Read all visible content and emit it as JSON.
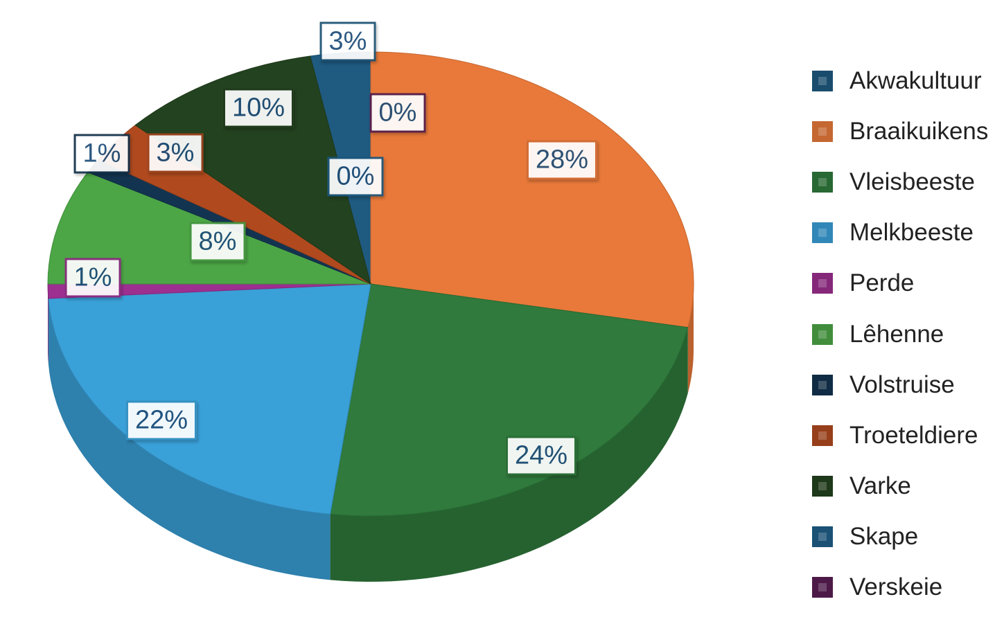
{
  "chart_data": {
    "type": "pie",
    "style": "3d",
    "title": "",
    "legend_position": "right",
    "slices": [
      {
        "label": "Akwakultuur",
        "value": 3,
        "data_label": "3%",
        "color": "#1f5a80"
      },
      {
        "label": "Braaikuikens",
        "value": 28,
        "data_label": "28%",
        "color": "#e8793a"
      },
      {
        "label": "Vleisbeeste",
        "value": 24,
        "data_label": "24%",
        "color": "#2f7a3c"
      },
      {
        "label": "Melkbeeste",
        "value": 22,
        "data_label": "22%",
        "color": "#3aa0d8"
      },
      {
        "label": "Perde",
        "value": 1,
        "data_label": "1%",
        "color": "#9c2f90"
      },
      {
        "label": "Lêhenne",
        "value": 8,
        "data_label": "8%",
        "color": "#4ca646"
      },
      {
        "label": "Volstruise",
        "value": 1,
        "data_label": "1%",
        "color": "#133450"
      },
      {
        "label": "Troeteldiere",
        "value": 3,
        "data_label": "3%",
        "color": "#b04a1e"
      },
      {
        "label": "Varke",
        "value": 10,
        "data_label": "10%",
        "color": "#23421f"
      },
      {
        "label": "Skape",
        "value": 0,
        "data_label": "0%",
        "color": "#1f5f8a"
      },
      {
        "label": "Verskeie",
        "value": 0,
        "data_label": "0%",
        "color": "#5a1f55"
      }
    ]
  }
}
